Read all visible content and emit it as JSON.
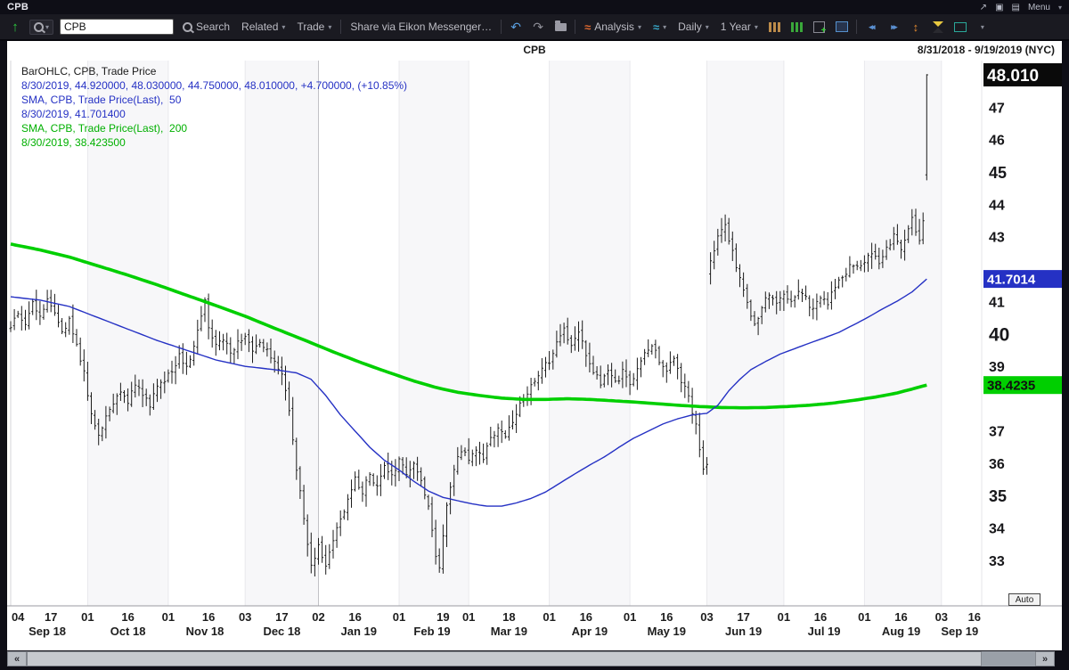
{
  "window": {
    "title": "CPB",
    "menu_label": "Menu"
  },
  "toolbar": {
    "symbol_input": "CPB",
    "search_label": "Search",
    "related_label": "Related",
    "trade_label": "Trade",
    "share_label": "Share via Eikon Messenger…",
    "analysis_label": "Analysis",
    "interval_label": "Daily",
    "range_label": "1 Year"
  },
  "chart": {
    "title": "CPB",
    "date_range": "8/31/2018 - 9/19/2019 (NYC)",
    "auto_label": "Auto",
    "axis_boxes": {
      "last": "48.010",
      "sma50": "41.7014",
      "sma200": "38.4235"
    },
    "legend_lines": [
      {
        "text": "BarOHLC, CPB, Trade Price",
        "color": "#1a1a1a"
      },
      {
        "text": "8/30/2019, 44.920000, 48.030000, 44.750000, 48.010000, +4.700000, (+10.85%)",
        "color": "#2531c4"
      },
      {
        "text": "SMA, CPB, Trade Price(Last),  50",
        "color": "#2531c4"
      },
      {
        "text": "8/30/2019, 41.701400",
        "color": "#2531c4"
      },
      {
        "text": "SMA, CPB, Trade Price(Last),  200",
        "color": "#00b000"
      },
      {
        "text": "8/30/2019, 38.423500",
        "color": "#00b000"
      }
    ]
  },
  "scrollbar": {
    "left_label": "«",
    "right_label": "»"
  },
  "chart_data": {
    "type": "ohlc",
    "symbol": "CPB",
    "interval": "Daily",
    "title": "CPB",
    "x_range_days": [
      0,
      265
    ],
    "price_range": [
      31.6,
      48.45
    ],
    "sma50_last": 41.7014,
    "sma200_last": 38.4235,
    "last_bar": {
      "date": "8/30/2019",
      "day": 250,
      "open": 44.92,
      "high": 48.03,
      "low": 44.75,
      "close": 48.01,
      "change": "+4.700000",
      "pct_change": "(+10.85%)"
    },
    "colors": {
      "bars": "#1c1c1c",
      "sma50": "#2531c4",
      "sma200": "#00cf00"
    },
    "y_axis_ticks": [
      {
        "price": 47,
        "label": "47",
        "size": 16
      },
      {
        "price": 46,
        "label": "46",
        "size": 16
      },
      {
        "price": 45,
        "label": "45",
        "size": 18
      },
      {
        "price": 44,
        "label": "44",
        "size": 16
      },
      {
        "price": 43,
        "label": "43",
        "size": 16
      },
      {
        "price": 41,
        "label": "41",
        "size": 16
      },
      {
        "price": 40,
        "label": "40",
        "size": 21
      },
      {
        "price": 39,
        "label": "39",
        "size": 16
      },
      {
        "price": 37,
        "label": "37",
        "size": 16
      },
      {
        "price": 36,
        "label": "36",
        "size": 16
      },
      {
        "price": 35,
        "label": "35",
        "size": 18
      },
      {
        "price": 34,
        "label": "34",
        "size": 16
      },
      {
        "price": 33,
        "label": "33",
        "size": 16
      }
    ],
    "month_boundaries": [
      0,
      21,
      43,
      64,
      84,
      106,
      125,
      147,
      169,
      190,
      211,
      233,
      254,
      265
    ],
    "months": [
      {
        "label": "Sep 18",
        "center": 10
      },
      {
        "label": "Oct 18",
        "center": 32
      },
      {
        "label": "Nov 18",
        "center": 53
      },
      {
        "label": "Dec 18",
        "center": 74
      },
      {
        "label": "Jan 19",
        "center": 95
      },
      {
        "label": "Feb 19",
        "center": 115
      },
      {
        "label": "Mar 19",
        "center": 136
      },
      {
        "label": "Apr 19",
        "center": 158
      },
      {
        "label": "May 19",
        "center": 179
      },
      {
        "label": "Jun 19",
        "center": 200
      },
      {
        "label": "Jul 19",
        "center": 222
      },
      {
        "label": "Aug 19",
        "center": 243
      },
      {
        "label": "Sep 19",
        "center": 259
      }
    ],
    "x_ticks": [
      {
        "day": 2,
        "label": "04"
      },
      {
        "day": 11,
        "label": "17"
      },
      {
        "day": 21,
        "label": "01"
      },
      {
        "day": 32,
        "label": "16"
      },
      {
        "day": 43,
        "label": "01"
      },
      {
        "day": 54,
        "label": "16"
      },
      {
        "day": 64,
        "label": "03"
      },
      {
        "day": 74,
        "label": "17"
      },
      {
        "day": 84,
        "label": "02"
      },
      {
        "day": 94,
        "label": "16"
      },
      {
        "day": 106,
        "label": "01"
      },
      {
        "day": 118,
        "label": "19"
      },
      {
        "day": 125,
        "label": "01"
      },
      {
        "day": 136,
        "label": "18"
      },
      {
        "day": 147,
        "label": "01"
      },
      {
        "day": 157,
        "label": "16"
      },
      {
        "day": 169,
        "label": "01"
      },
      {
        "day": 179,
        "label": "16"
      },
      {
        "day": 190,
        "label": "03"
      },
      {
        "day": 200,
        "label": "17"
      },
      {
        "day": 211,
        "label": "01"
      },
      {
        "day": 221,
        "label": "16"
      },
      {
        "day": 233,
        "label": "01"
      },
      {
        "day": 243,
        "label": "16"
      },
      {
        "day": 254,
        "label": "03"
      },
      {
        "day": 263,
        "label": "16"
      }
    ],
    "close_anchors": [
      [
        0,
        40.2
      ],
      [
        2,
        40.6
      ],
      [
        4,
        40.3
      ],
      [
        6,
        40.9
      ],
      [
        8,
        40.6
      ],
      [
        10,
        41.1
      ],
      [
        12,
        40.7
      ],
      [
        14,
        40.0
      ],
      [
        16,
        40.4
      ],
      [
        18,
        39.7
      ],
      [
        20,
        38.8
      ],
      [
        22,
        37.5
      ],
      [
        24,
        36.9
      ],
      [
        26,
        37.5
      ],
      [
        28,
        37.9
      ],
      [
        30,
        38.3
      ],
      [
        32,
        37.9
      ],
      [
        34,
        38.4
      ],
      [
        36,
        38.1
      ],
      [
        38,
        37.8
      ],
      [
        40,
        38.3
      ],
      [
        42,
        38.6
      ],
      [
        44,
        38.9
      ],
      [
        46,
        39.3
      ],
      [
        48,
        38.9
      ],
      [
        50,
        39.6
      ],
      [
        52,
        40.6
      ],
      [
        53,
        41.1
      ],
      [
        54,
        40.2
      ],
      [
        56,
        39.6
      ],
      [
        58,
        39.9
      ],
      [
        60,
        39.4
      ],
      [
        62,
        39.7
      ],
      [
        64,
        39.9
      ],
      [
        66,
        39.5
      ],
      [
        68,
        39.8
      ],
      [
        70,
        39.5
      ],
      [
        72,
        39.1
      ],
      [
        74,
        38.7
      ],
      [
        76,
        37.7
      ],
      [
        78,
        35.9
      ],
      [
        80,
        34.3
      ],
      [
        81,
        33.5
      ],
      [
        82,
        32.9
      ],
      [
        84,
        33.4
      ],
      [
        86,
        32.8
      ],
      [
        88,
        33.6
      ],
      [
        90,
        34.3
      ],
      [
        92,
        34.9
      ],
      [
        94,
        35.5
      ],
      [
        96,
        35.1
      ],
      [
        98,
        35.7
      ],
      [
        100,
        35.3
      ],
      [
        102,
        35.9
      ],
      [
        104,
        35.6
      ],
      [
        106,
        36.1
      ],
      [
        108,
        35.7
      ],
      [
        110,
        36.0
      ],
      [
        112,
        35.5
      ],
      [
        114,
        34.6
      ],
      [
        116,
        33.1
      ],
      [
        117,
        32.8
      ],
      [
        119,
        34.7
      ],
      [
        121,
        35.9
      ],
      [
        123,
        36.4
      ],
      [
        125,
        36.1
      ],
      [
        127,
        36.5
      ],
      [
        129,
        36.2
      ],
      [
        131,
        36.7
      ],
      [
        133,
        37.1
      ],
      [
        135,
        36.8
      ],
      [
        137,
        37.3
      ],
      [
        139,
        37.8
      ],
      [
        141,
        38.2
      ],
      [
        143,
        38.5
      ],
      [
        145,
        38.9
      ],
      [
        147,
        39.2
      ],
      [
        149,
        39.7
      ],
      [
        151,
        40.1
      ],
      [
        153,
        39.7
      ],
      [
        155,
        40.0
      ],
      [
        157,
        39.4
      ],
      [
        159,
        38.9
      ],
      [
        161,
        38.5
      ],
      [
        163,
        38.9
      ],
      [
        165,
        38.5
      ],
      [
        167,
        38.8
      ],
      [
        169,
        38.4
      ],
      [
        171,
        39.0
      ],
      [
        173,
        39.4
      ],
      [
        175,
        39.6
      ],
      [
        177,
        39.2
      ],
      [
        179,
        38.8
      ],
      [
        181,
        39.3
      ],
      [
        183,
        38.6
      ],
      [
        185,
        38.0
      ],
      [
        187,
        37.2
      ],
      [
        188,
        36.5
      ],
      [
        189,
        35.9
      ],
      [
        190,
        36.0
      ],
      [
        191,
        42.3
      ],
      [
        193,
        43.0
      ],
      [
        195,
        43.4
      ],
      [
        197,
        42.5
      ],
      [
        199,
        41.7
      ],
      [
        201,
        40.9
      ],
      [
        203,
        40.2
      ],
      [
        205,
        40.9
      ],
      [
        207,
        41.2
      ],
      [
        209,
        41.0
      ],
      [
        211,
        41.3
      ],
      [
        213,
        41.0
      ],
      [
        215,
        41.4
      ],
      [
        217,
        41.1
      ],
      [
        219,
        40.7
      ],
      [
        221,
        41.2
      ],
      [
        223,
        41.0
      ],
      [
        225,
        41.5
      ],
      [
        227,
        41.8
      ],
      [
        229,
        42.1
      ],
      [
        231,
        42.0
      ],
      [
        233,
        42.2
      ],
      [
        235,
        42.5
      ],
      [
        237,
        42.2
      ],
      [
        239,
        42.7
      ],
      [
        241,
        43.0
      ],
      [
        243,
        42.6
      ],
      [
        245,
        43.3
      ],
      [
        246,
        43.6
      ],
      [
        247,
        43.2
      ],
      [
        248,
        42.8
      ],
      [
        249,
        43.5
      ]
    ],
    "sma50": [
      [
        0,
        41.15
      ],
      [
        8,
        41.05
      ],
      [
        16,
        40.85
      ],
      [
        24,
        40.5
      ],
      [
        32,
        40.15
      ],
      [
        40,
        39.8
      ],
      [
        48,
        39.5
      ],
      [
        56,
        39.2
      ],
      [
        64,
        39.0
      ],
      [
        72,
        38.9
      ],
      [
        78,
        38.8
      ],
      [
        82,
        38.6
      ],
      [
        86,
        38.1
      ],
      [
        90,
        37.5
      ],
      [
        94,
        37.0
      ],
      [
        98,
        36.5
      ],
      [
        102,
        36.1
      ],
      [
        106,
        35.8
      ],
      [
        110,
        35.45
      ],
      [
        114,
        35.15
      ],
      [
        118,
        34.95
      ],
      [
        122,
        34.85
      ],
      [
        126,
        34.75
      ],
      [
        130,
        34.68
      ],
      [
        134,
        34.68
      ],
      [
        138,
        34.78
      ],
      [
        142,
        34.92
      ],
      [
        146,
        35.12
      ],
      [
        150,
        35.4
      ],
      [
        154,
        35.68
      ],
      [
        158,
        35.95
      ],
      [
        162,
        36.2
      ],
      [
        166,
        36.5
      ],
      [
        170,
        36.78
      ],
      [
        174,
        37.0
      ],
      [
        178,
        37.22
      ],
      [
        182,
        37.38
      ],
      [
        186,
        37.5
      ],
      [
        190,
        37.55
      ],
      [
        193,
        37.8
      ],
      [
        196,
        38.25
      ],
      [
        199,
        38.6
      ],
      [
        202,
        38.9
      ],
      [
        206,
        39.15
      ],
      [
        210,
        39.38
      ],
      [
        214,
        39.55
      ],
      [
        218,
        39.72
      ],
      [
        222,
        39.88
      ],
      [
        226,
        40.05
      ],
      [
        230,
        40.28
      ],
      [
        234,
        40.52
      ],
      [
        238,
        40.78
      ],
      [
        242,
        41.02
      ],
      [
        246,
        41.3
      ],
      [
        250,
        41.7014
      ]
    ],
    "sma200": [
      [
        0,
        42.78
      ],
      [
        8,
        42.6
      ],
      [
        16,
        42.38
      ],
      [
        24,
        42.1
      ],
      [
        32,
        41.82
      ],
      [
        40,
        41.52
      ],
      [
        48,
        41.2
      ],
      [
        56,
        40.88
      ],
      [
        64,
        40.55
      ],
      [
        72,
        40.18
      ],
      [
        80,
        39.82
      ],
      [
        88,
        39.45
      ],
      [
        96,
        39.1
      ],
      [
        104,
        38.78
      ],
      [
        110,
        38.55
      ],
      [
        116,
        38.35
      ],
      [
        122,
        38.2
      ],
      [
        128,
        38.1
      ],
      [
        134,
        38.02
      ],
      [
        140,
        37.98
      ],
      [
        146,
        37.98
      ],
      [
        152,
        38.0
      ],
      [
        158,
        37.98
      ],
      [
        164,
        37.94
      ],
      [
        170,
        37.9
      ],
      [
        176,
        37.85
      ],
      [
        182,
        37.8
      ],
      [
        188,
        37.76
      ],
      [
        194,
        37.73
      ],
      [
        200,
        37.72
      ],
      [
        206,
        37.73
      ],
      [
        212,
        37.76
      ],
      [
        218,
        37.8
      ],
      [
        224,
        37.86
      ],
      [
        230,
        37.95
      ],
      [
        236,
        38.05
      ],
      [
        242,
        38.18
      ],
      [
        246,
        38.3
      ],
      [
        250,
        38.4235
      ]
    ]
  }
}
